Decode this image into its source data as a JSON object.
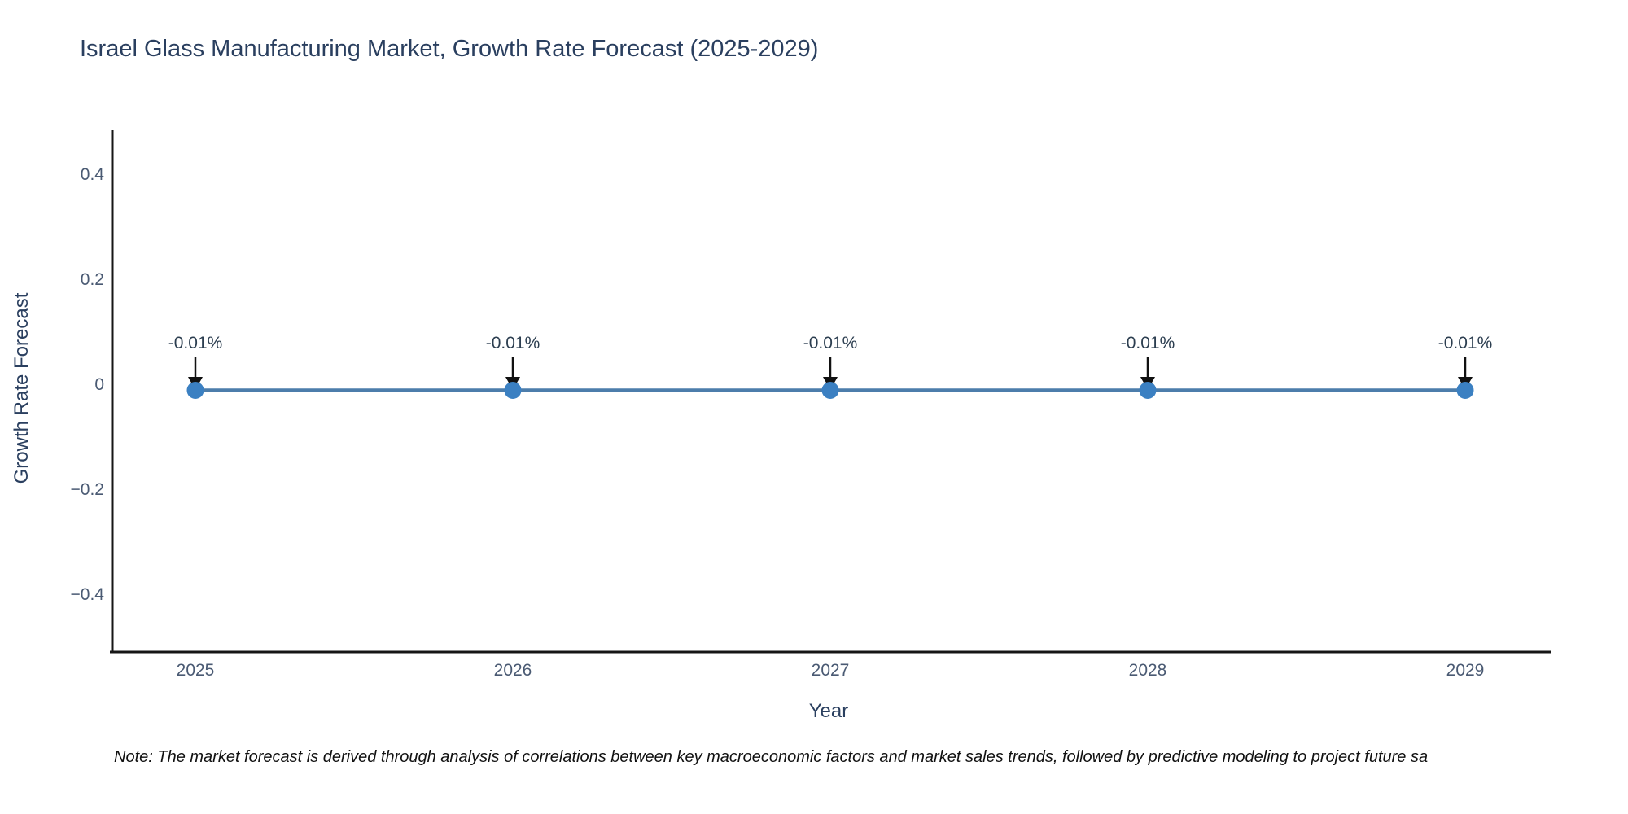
{
  "title": "Israel Glass Manufacturing Market, Growth Rate Forecast (2025-2029)",
  "note": "Note: The market forecast is derived through analysis of correlations between key macroeconomic factors and market sales trends, followed by predictive modeling to project future sa",
  "chart_data": {
    "type": "line",
    "title": "Israel Glass Manufacturing Market, Growth Rate Forecast (2025-2029)",
    "xlabel": "Year",
    "ylabel": "Growth Rate Forecast",
    "x": [
      2025,
      2026,
      2027,
      2028,
      2029
    ],
    "x_labels": [
      "2025",
      "2026",
      "2027",
      "2028",
      "2029"
    ],
    "series": [
      {
        "name": "Growth Rate Forecast",
        "values": [
          -0.01,
          -0.01,
          -0.01,
          -0.01,
          -0.01
        ]
      }
    ],
    "point_labels": [
      "-0.01%",
      "-0.01%",
      "-0.01%",
      "-0.01%",
      "-0.01%"
    ],
    "yticks": [
      {
        "label": "0.4",
        "v": 0.4
      },
      {
        "label": "0.2",
        "v": 0.2
      },
      {
        "label": "0",
        "v": 0
      },
      {
        "label": "−0.2",
        "v": -0.2
      },
      {
        "label": "−0.4",
        "v": -0.4
      }
    ],
    "ylim": [
      -0.51,
      0.49
    ],
    "grid": false,
    "legend": "none",
    "colors": {
      "line": "#4c7dab",
      "marker": "#3b80c2",
      "arrow": "#111111",
      "axis_line": "#161616",
      "title_text": "#2a3f5f",
      "tick_text": "#4a5a73",
      "annotation_text": "#2c3e50",
      "note_text": "#111111"
    }
  }
}
